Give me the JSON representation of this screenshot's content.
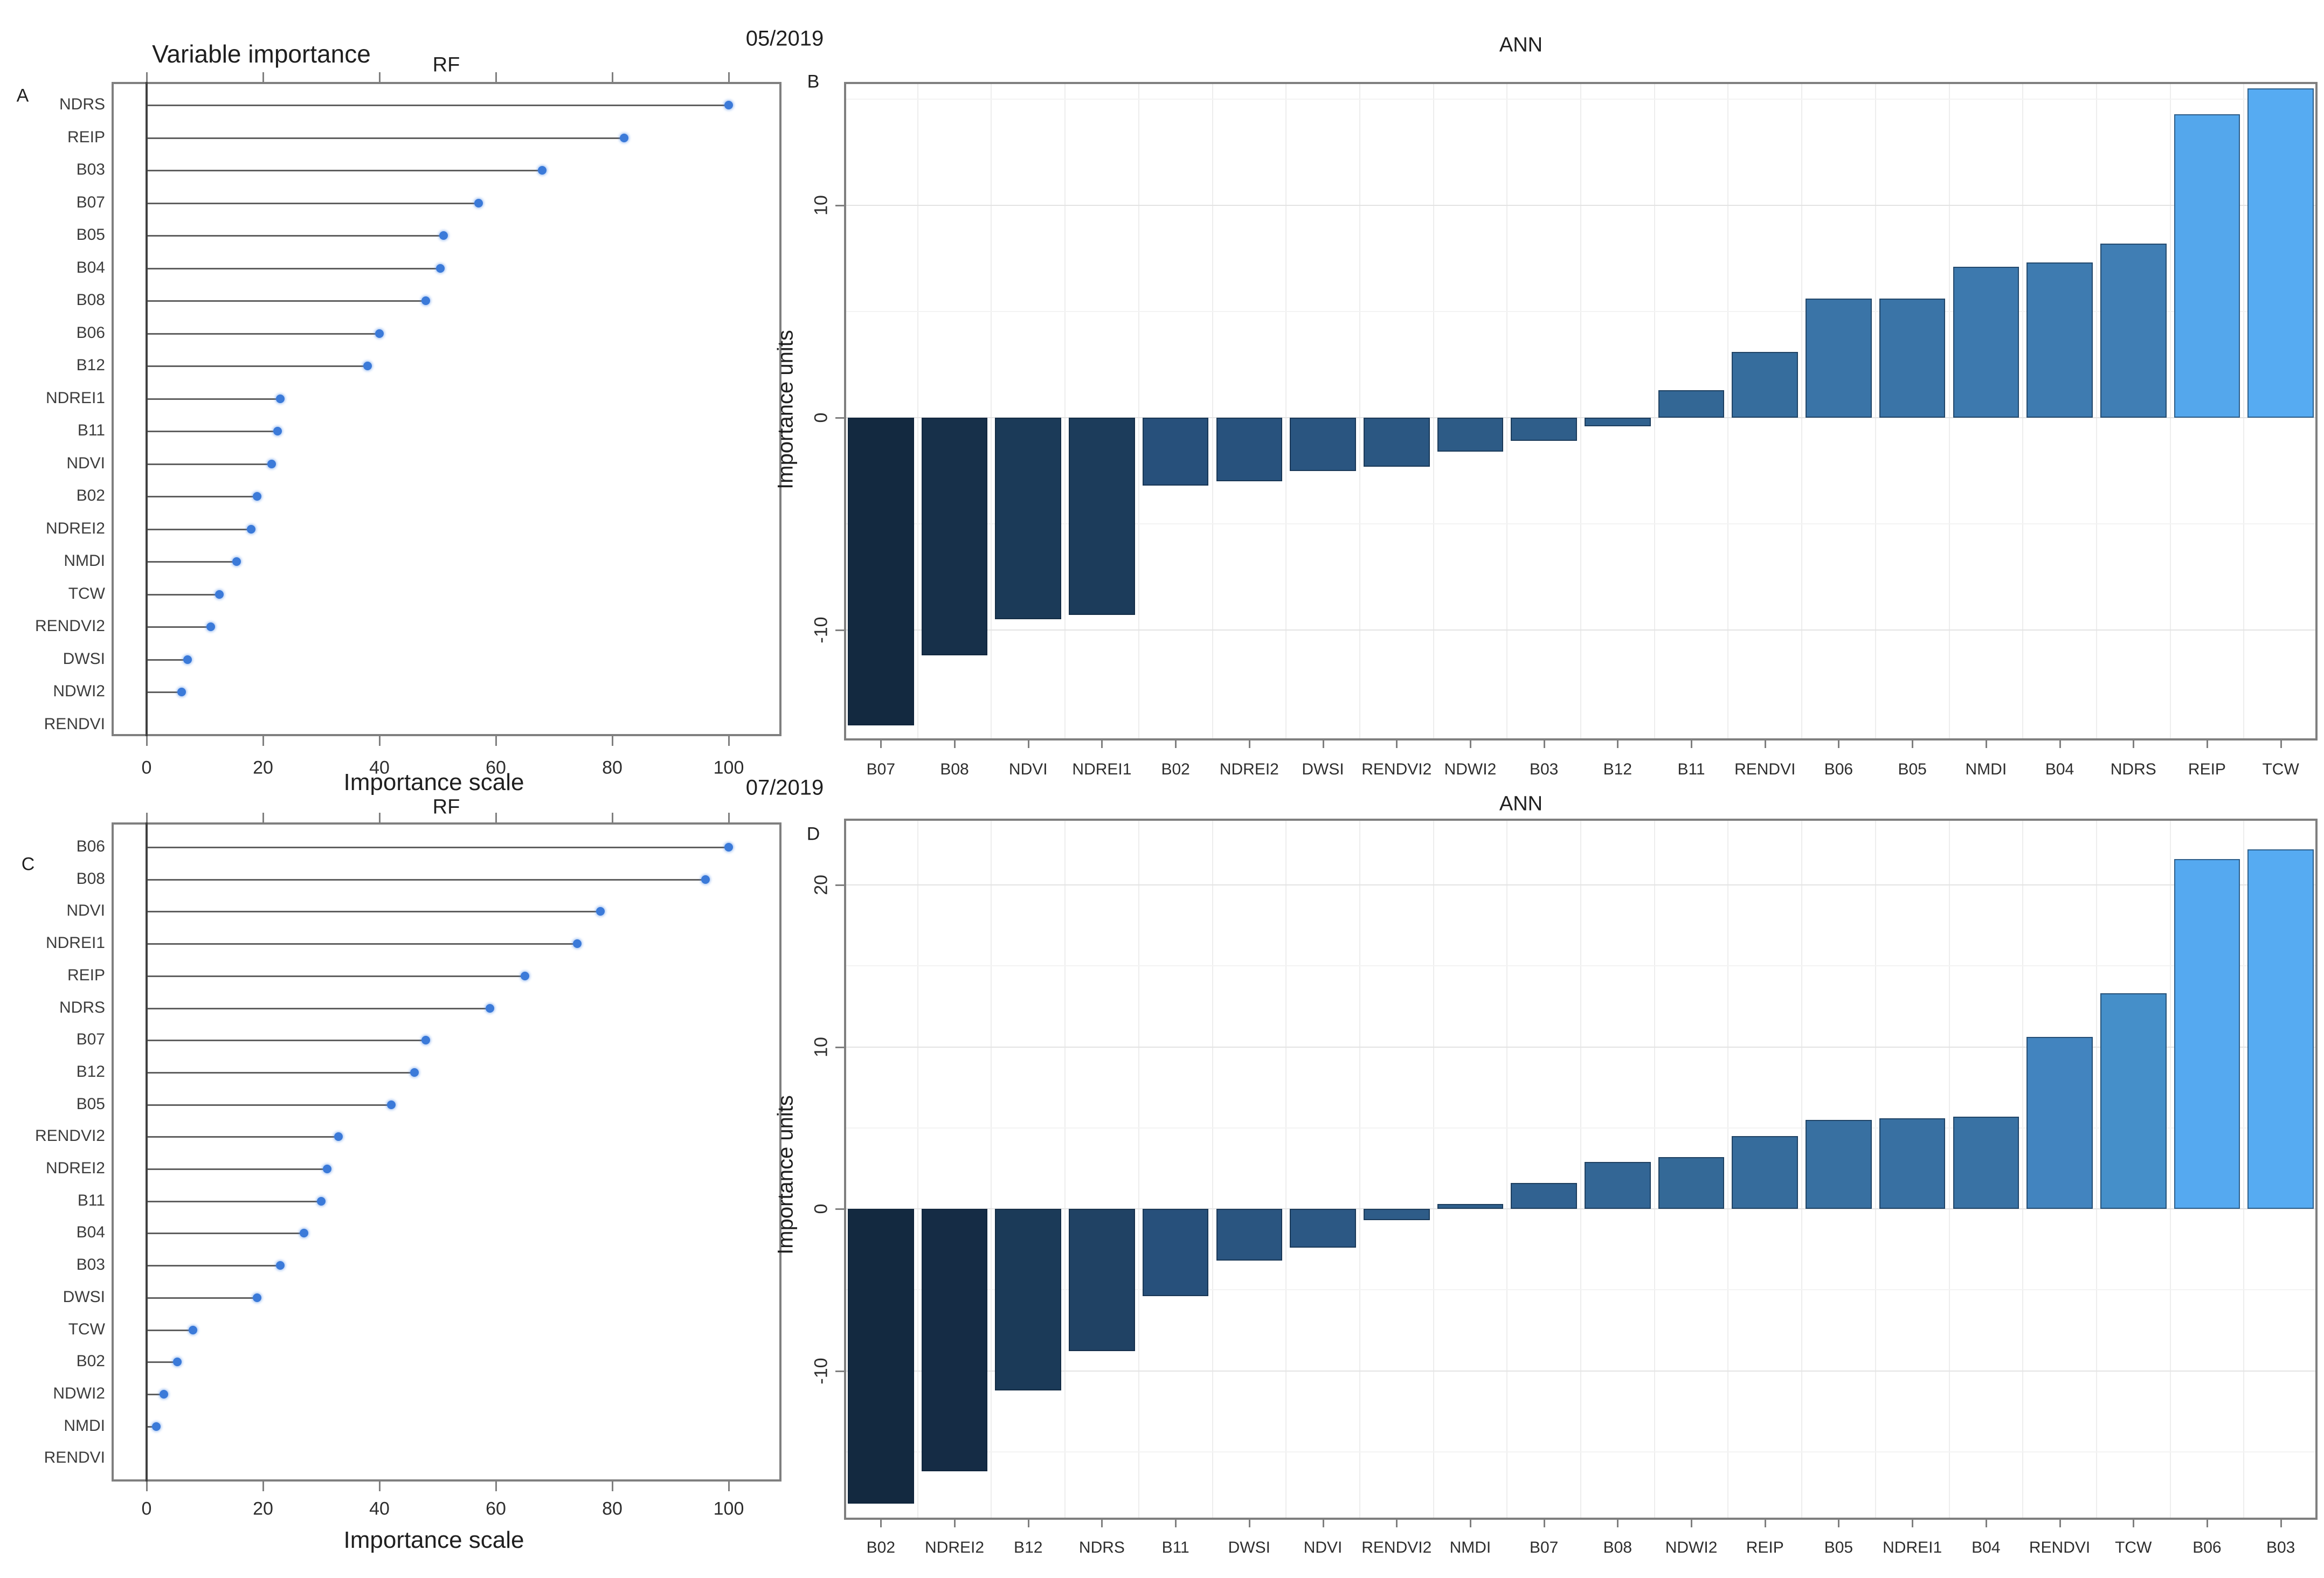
{
  "header": {
    "main_title": "Variable importance",
    "date_top": "05/2019",
    "date_bottom": "07/2019"
  },
  "style_colors": {
    "dot": "#3b7ad9",
    "stem": "#5f5f5f",
    "panel_border": "#7f7f7f",
    "axis_line": "#3f3f3f",
    "bar_dark": "#132940",
    "bar_light": "#56abf2"
  },
  "chart_data": [
    {
      "id": "A",
      "panel_label": "A",
      "type": "lollipop",
      "title": "RF",
      "xlabel": "Importance scale",
      "xticks": [
        0,
        20,
        40,
        60,
        80,
        100
      ],
      "xlim": [
        -6,
        109
      ],
      "grid": false,
      "categories": [
        "NDRS",
        "REIP",
        "B03",
        "B07",
        "B05",
        "B04",
        "B08",
        "B06",
        "B12",
        "NDREI1",
        "B11",
        "NDVI",
        "B02",
        "NDREI2",
        "NMDI",
        "TCW",
        "RENDVI2",
        "DWSI",
        "NDWI2",
        "RENDVI"
      ],
      "values": [
        100,
        82,
        68,
        57,
        51,
        50.5,
        48,
        40,
        38,
        23,
        22.5,
        21.5,
        19,
        18,
        15.5,
        12.5,
        11,
        7,
        6,
        0
      ]
    },
    {
      "id": "B",
      "panel_label": "B",
      "type": "bar",
      "title": "ANN",
      "ylabel": "Importance units",
      "yticks": [
        10,
        0,
        -10
      ],
      "ylim": [
        -15.2,
        15.8
      ],
      "grid": true,
      "categories": [
        "B07",
        "B08",
        "NDVI",
        "NDREI1",
        "B02",
        "NDREI2",
        "DWSI",
        "RENDVI2",
        "NDWI2",
        "B03",
        "B12",
        "B11",
        "RENDVI",
        "B06",
        "B05",
        "NMDI",
        "B04",
        "NDRS",
        "REIP",
        "TCW"
      ],
      "values": [
        -14.5,
        -11.2,
        -9.5,
        -9.3,
        -3.2,
        -3.0,
        -2.5,
        -2.3,
        -1.6,
        -1.1,
        -0.4,
        1.3,
        3.1,
        5.6,
        5.6,
        7.1,
        7.3,
        8.2,
        14.3,
        15.5
      ],
      "colors": [
        "#132940",
        "#17304a",
        "#1b3a58",
        "#1c3c5b",
        "#27507b",
        "#28527d",
        "#2a5580",
        "#2b5782",
        "#2d5b86",
        "#2f5e8a",
        "#30618e",
        "#336795",
        "#366d9d",
        "#3a74a7",
        "#3a74a7",
        "#3d79ae",
        "#3e7bb0",
        "#407eb4",
        "#54a7ec",
        "#56abf2"
      ]
    },
    {
      "id": "C",
      "panel_label": "C",
      "type": "lollipop",
      "title": "RF",
      "xlabel": "Importance scale",
      "xticks": [
        0,
        20,
        40,
        60,
        80,
        100
      ],
      "xlim": [
        -6,
        109
      ],
      "grid": false,
      "categories": [
        "B06",
        "B08",
        "NDVI",
        "NDREI1",
        "REIP",
        "NDRS",
        "B07",
        "B12",
        "B05",
        "RENDVI2",
        "NDREI2",
        "B11",
        "B04",
        "B03",
        "DWSI",
        "TCW",
        "B02",
        "NDWI2",
        "NMDI",
        "RENDVI"
      ],
      "values": [
        100,
        96,
        78,
        74,
        65,
        59,
        48,
        46,
        42,
        33,
        31,
        30,
        27,
        23,
        19,
        8,
        5.3,
        3,
        1.7,
        0
      ]
    },
    {
      "id": "D",
      "panel_label": "D",
      "type": "bar",
      "title": "ANN",
      "ylabel": "Importance units",
      "yticks": [
        20,
        10,
        0,
        -10
      ],
      "ylim": [
        -19.2,
        24.1
      ],
      "grid": true,
      "categories": [
        "B02",
        "NDREI2",
        "B12",
        "NDRS",
        "B11",
        "DWSI",
        "NDVI",
        "RENDVI2",
        "NMDI",
        "B07",
        "B08",
        "NDWI2",
        "REIP",
        "B05",
        "NDREI1",
        "B04",
        "RENDVI",
        "TCW",
        "B06",
        "B03"
      ],
      "values": [
        -18.2,
        -16.2,
        -11.2,
        -8.8,
        -5.4,
        -3.2,
        -2.4,
        -0.7,
        0.3,
        1.6,
        2.9,
        3.2,
        4.5,
        5.5,
        5.6,
        5.7,
        10.6,
        13.3,
        21.6,
        22.2
      ],
      "colors": [
        "#132940",
        "#152c45",
        "#1b3a58",
        "#204264",
        "#27507b",
        "#2a5580",
        "#2c5884",
        "#2e5c88",
        "#2f5f8c",
        "#316291",
        "#336695",
        "#346997",
        "#366c9c",
        "#3870a1",
        "#3870a2",
        "#3972a4",
        "#4284bf",
        "#458fc9",
        "#55a9f0",
        "#56abf2"
      ]
    }
  ]
}
